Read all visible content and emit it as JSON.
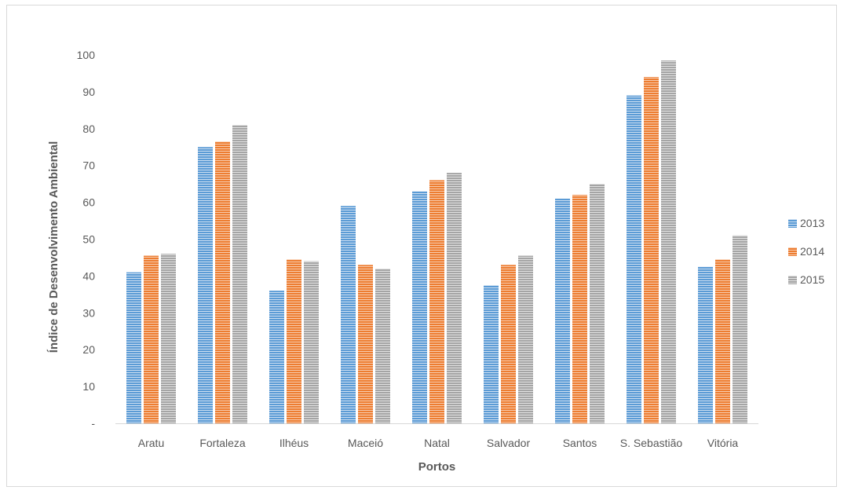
{
  "chart_data": {
    "type": "bar",
    "title": "",
    "xlabel": "Portos",
    "ylabel": "Índice de Desenvolvimento Ambiental",
    "categories": [
      "Aratu",
      "Fortaleza",
      "Ilhéus",
      "Maceió",
      "Natal",
      "Salvador",
      "Santos",
      "S. Sebastião",
      "Vitória"
    ],
    "series": [
      {
        "name": "2013",
        "color": "#5b9bd5",
        "values": [
          41,
          75,
          36,
          59,
          63,
          37.5,
          61,
          89,
          42.5
        ]
      },
      {
        "name": "2014",
        "color": "#ed7d31",
        "values": [
          45.5,
          76.5,
          44.5,
          43,
          66,
          43,
          62,
          94,
          44.5
        ]
      },
      {
        "name": "2015",
        "color": "#a5a5a5",
        "values": [
          46,
          81,
          44,
          42,
          68,
          45.5,
          65,
          98.5,
          51
        ]
      }
    ],
    "ylim": [
      0,
      100
    ],
    "yticks": [
      0,
      10,
      20,
      30,
      40,
      50,
      60,
      70,
      80,
      90,
      100
    ],
    "ytick_labels": [
      "-",
      "10",
      "20",
      "30",
      "40",
      "50",
      "60",
      "70",
      "80",
      "90",
      "100"
    ],
    "grid": false,
    "legend_position": "right"
  }
}
